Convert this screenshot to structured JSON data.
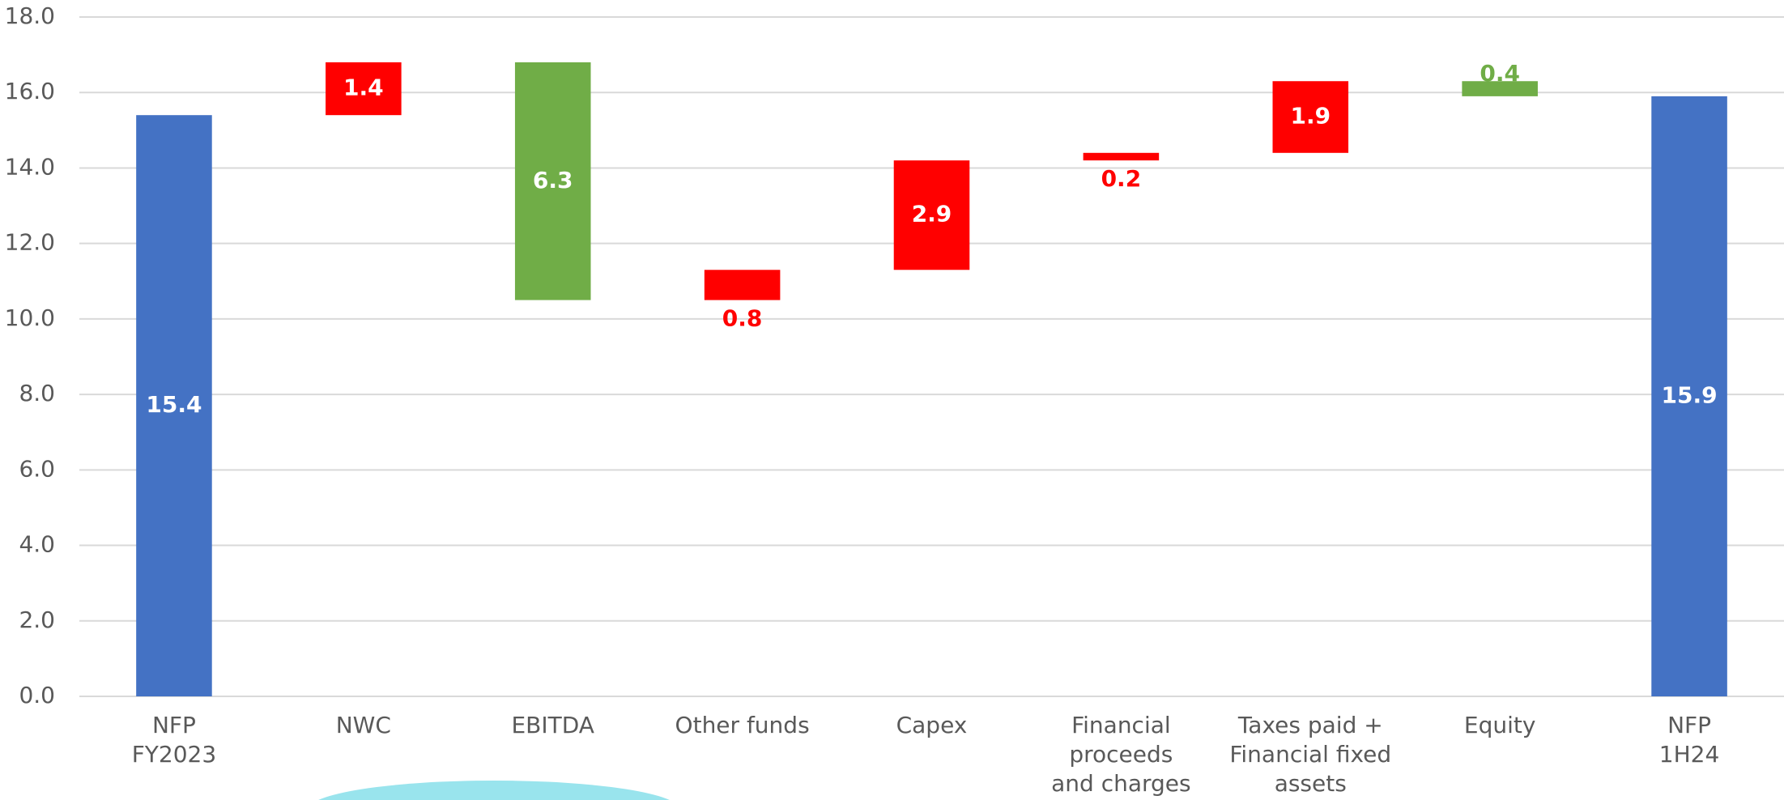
{
  "chart_data": {
    "type": "waterfall",
    "categories": [
      "NFP\nFY2023",
      "NWC",
      "EBITDA",
      "Other funds",
      "Capex",
      "Financial\nproceeds\nand charges",
      "Taxes paid +\nFinancial fixed\nassets",
      "Equity",
      "NFP\n1H24"
    ],
    "values": [
      15.4,
      1.4,
      6.3,
      0.8,
      2.9,
      0.2,
      1.9,
      0.4,
      15.9
    ],
    "kinds": [
      "total",
      "increase",
      "decrease",
      "increase",
      "increase",
      "increase",
      "increase",
      "decrease",
      "total"
    ],
    "colors": {
      "total": "#4472c4",
      "increase": "#ff0000",
      "decrease": "#70ad47"
    },
    "ylim": [
      0,
      18
    ],
    "yticks": [
      {
        "value": 0,
        "label": "0.0"
      },
      {
        "value": 2,
        "label": "2.0"
      },
      {
        "value": 4,
        "label": "4.0"
      },
      {
        "value": 6,
        "label": "6.0"
      },
      {
        "value": 8,
        "label": "8.0"
      },
      {
        "value": 10,
        "label": "10.0"
      },
      {
        "value": 12,
        "label": "12.0"
      },
      {
        "value": 14,
        "label": "14.0"
      },
      {
        "value": 16,
        "label": "16.0"
      },
      {
        "value": 18,
        "label": "18.0"
      }
    ],
    "grid": true
  }
}
